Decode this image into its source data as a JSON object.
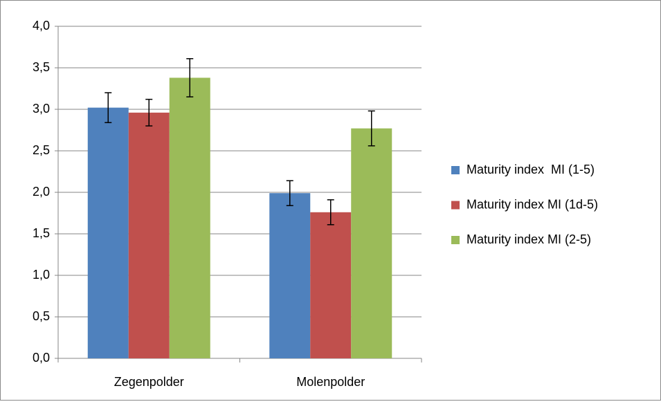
{
  "chart_data": {
    "type": "bar",
    "categories": [
      "Zegenpolder",
      "Molenpolder"
    ],
    "series": [
      {
        "name": "Maturity index  MI (1-5)",
        "color": "#4f81bd",
        "values": [
          3.02,
          1.99
        ],
        "errors": [
          0.18,
          0.15
        ]
      },
      {
        "name": "Maturity index MI (1d-5)",
        "color": "#c0504d",
        "values": [
          2.96,
          1.76
        ],
        "errors": [
          0.16,
          0.15
        ]
      },
      {
        "name": "Maturity index MI (2-5)",
        "color": "#9bbb59",
        "values": [
          3.38,
          2.77
        ],
        "errors": [
          0.23,
          0.21
        ]
      }
    ],
    "ylim": [
      0,
      4
    ],
    "yticks": [
      {
        "value": 0,
        "label": "0,0"
      },
      {
        "value": 0.5,
        "label": "0,5"
      },
      {
        "value": 1,
        "label": "1,0"
      },
      {
        "value": 1.5,
        "label": "1,5"
      },
      {
        "value": 2,
        "label": "2,0"
      },
      {
        "value": 2.5,
        "label": "2,5"
      },
      {
        "value": 3,
        "label": "3,0"
      },
      {
        "value": 3.5,
        "label": "3,5"
      },
      {
        "value": 4,
        "label": "4,0"
      }
    ],
    "grid": true,
    "legend": "right"
  }
}
